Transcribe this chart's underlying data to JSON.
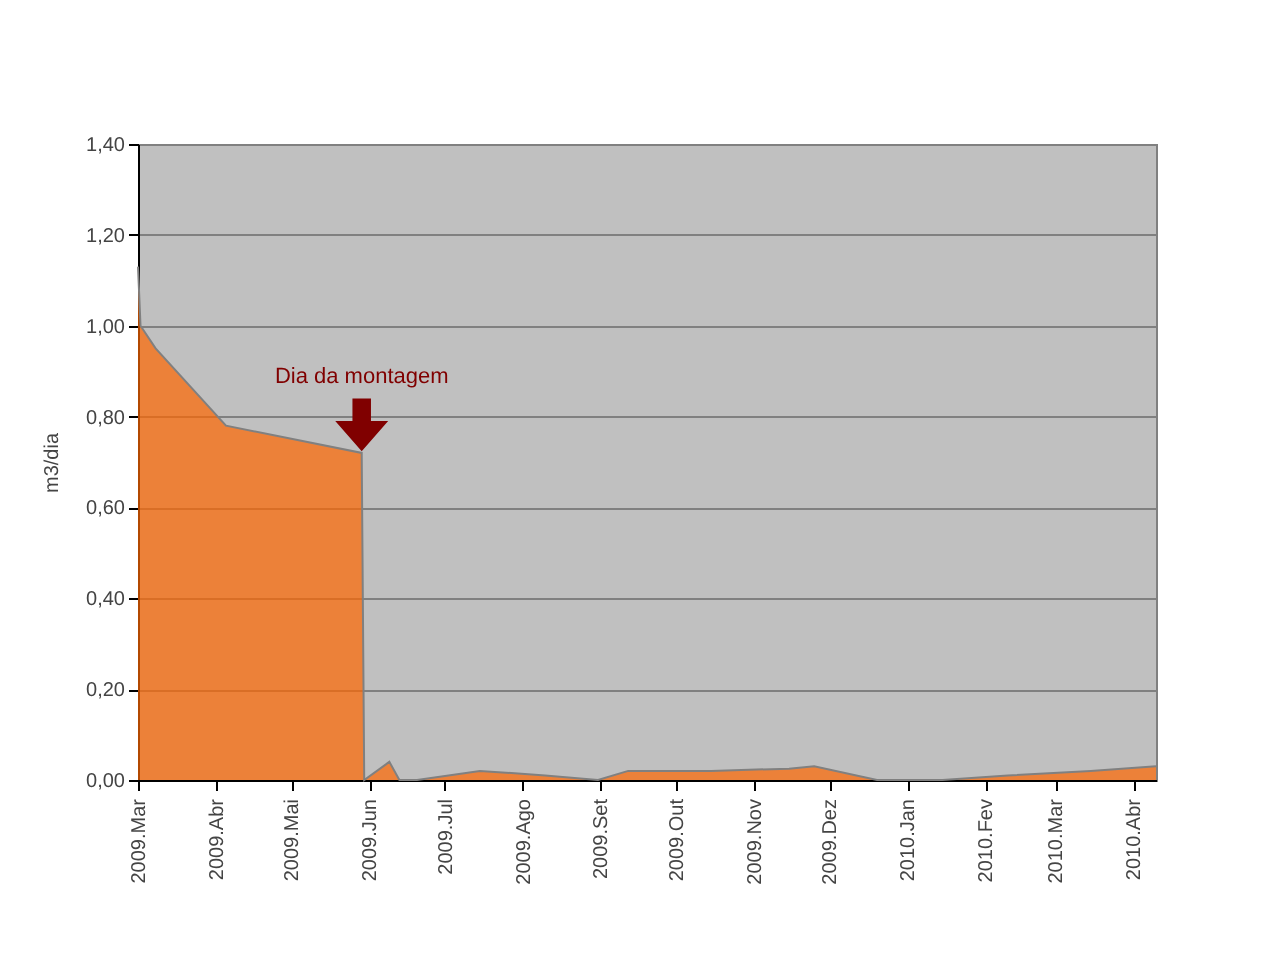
{
  "chart_data": {
    "type": "area",
    "ylabel": "m3/dia",
    "x": [
      "2009-03-01",
      "2009-03-02",
      "2009-03-08",
      "2009-04-05",
      "2009-05-29",
      "2009-05-30",
      "2009-06-09",
      "2009-06-13",
      "2009-06-20",
      "2009-07-15",
      "2009-08-10",
      "2009-08-31",
      "2009-09-12",
      "2009-10-15",
      "2009-11-15",
      "2009-11-25",
      "2009-12-20",
      "2010-01-15",
      "2010-02-10",
      "2010-03-15",
      "2010-04-10"
    ],
    "series": [
      {
        "color": "#ff6600",
        "values": [
          1.13,
          1.0,
          0.95,
          0.78,
          0.72,
          0.0,
          0.04,
          0.0,
          0.0,
          0.02,
          0.01,
          0.0,
          0.02,
          0.02,
          0.025,
          0.03,
          0.0,
          0.0,
          0.01,
          0.02,
          0.03
        ]
      }
    ],
    "xlim": [
      "2009-03-01",
      "2010-04-10"
    ],
    "xticks": [
      {
        "value": "2009-03-01",
        "label": "2009.Mar"
      },
      {
        "value": "2009-04-01",
        "label": "2009.Abr"
      },
      {
        "value": "2009-05-01",
        "label": "2009.Mai"
      },
      {
        "value": "2009-06-01",
        "label": "2009.Jun"
      },
      {
        "value": "2009-07-01",
        "label": "2009.Jul"
      },
      {
        "value": "2009-08-01",
        "label": "2009.Ago"
      },
      {
        "value": "2009-09-01",
        "label": "2009.Set"
      },
      {
        "value": "2009-10-01",
        "label": "2009.Out"
      },
      {
        "value": "2009-11-01",
        "label": "2009.Nov"
      },
      {
        "value": "2009-12-01",
        "label": "2009.Dez"
      },
      {
        "value": "2010-01-01",
        "label": "2010.Jan"
      },
      {
        "value": "2010-02-01",
        "label": "2010.Fev"
      },
      {
        "value": "2010-03-01",
        "label": "2010.Mar"
      },
      {
        "value": "2010-04-01",
        "label": "2010.Abr"
      }
    ],
    "ylim": [
      0,
      1.4
    ],
    "yticks": [
      {
        "value": 0,
        "label": "0,00"
      },
      {
        "value": 0.2,
        "label": "0,20"
      },
      {
        "value": 0.4,
        "label": "0,40"
      },
      {
        "value": 0.6,
        "label": "0,60"
      },
      {
        "value": 0.8,
        "label": "0,80"
      },
      {
        "value": 1.0,
        "label": "1,00"
      },
      {
        "value": 1.2,
        "label": "1,20"
      },
      {
        "value": 1.4,
        "label": "1,40"
      }
    ],
    "grid": "y",
    "annotations": [
      {
        "text": "Dia da montagem",
        "x": "2009-05-29",
        "y": 0.72
      }
    ]
  }
}
